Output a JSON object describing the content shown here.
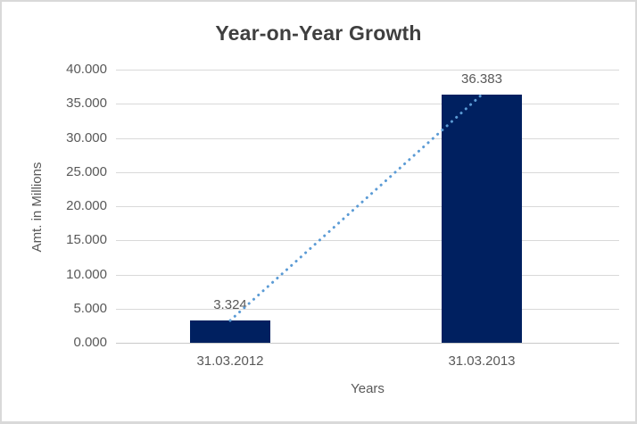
{
  "chart_data": {
    "type": "bar",
    "title": "Year-on-Year Growth",
    "xlabel": "Years",
    "ylabel": "Amt. in Millions",
    "categories": [
      "31.03.2012",
      "31.03.2013"
    ],
    "values": [
      3324,
      36383
    ],
    "data_labels": [
      "3.324",
      "36.383"
    ],
    "ylim": [
      0,
      40000
    ],
    "ytick_step": 5000,
    "ytick_labels": [
      "40.000",
      "35.000",
      "30.000",
      "25.000",
      "20.000",
      "15.000",
      "10.000",
      "5.000",
      "0.000"
    ],
    "grid": true,
    "legend": "none",
    "trendline": {
      "type": "linear",
      "style": "dotted",
      "color": "#5b9bd5"
    },
    "colors": {
      "bar": "#002060",
      "gridline": "#d9d9d9",
      "axis_line": "#c9c9c9",
      "title": "#3f3f3f",
      "label": "#595959",
      "frame_border": "#d9d9d9",
      "background": "#ffffff"
    }
  }
}
